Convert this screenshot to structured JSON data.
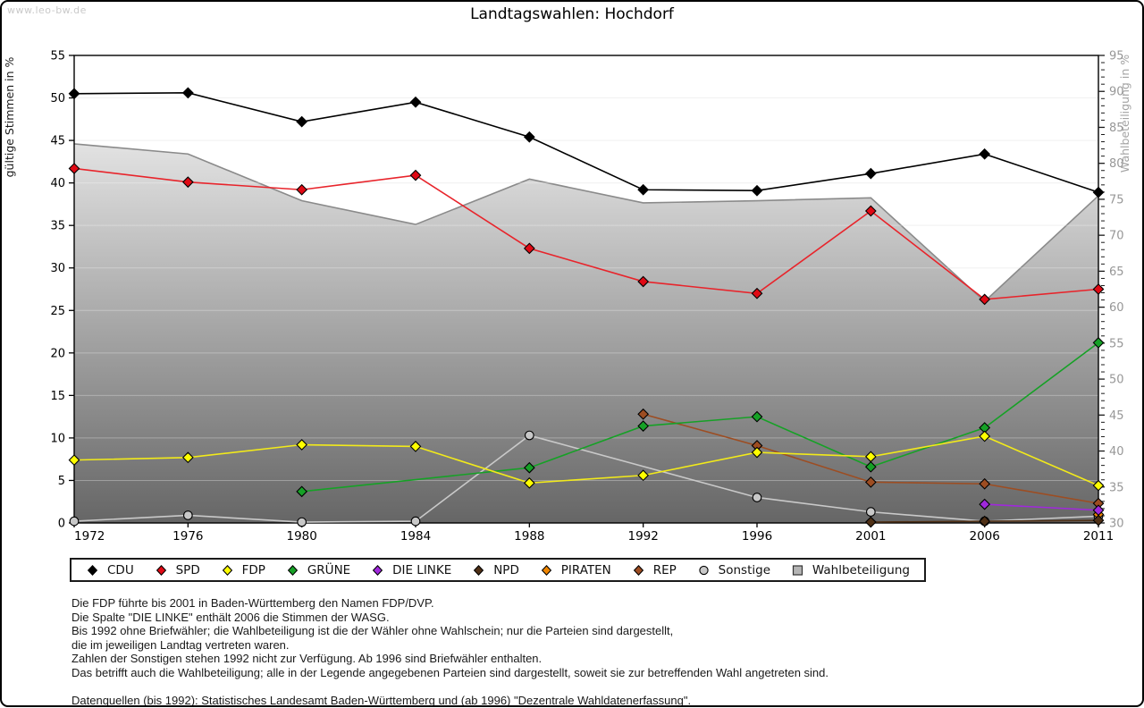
{
  "page": {
    "watermark": "www.leo-bw.de",
    "title": "Landtagswahlen: Hochdorf"
  },
  "chart_data": {
    "type": "line",
    "title": "Landtagswahlen: Hochdorf",
    "categories": [
      "1972",
      "1976",
      "1980",
      "1984",
      "1988",
      "1992",
      "1996",
      "2001",
      "2006",
      "2011"
    ],
    "left_axis": {
      "label": "gültige Stimmen in %",
      "min": 0,
      "max": 55,
      "step": 5
    },
    "right_axis": {
      "label": "Wahlbeteiligung in %",
      "min": 30,
      "max": 95,
      "step": 5,
      "minor_step": 1
    },
    "grid": true,
    "legend_position": "bottom",
    "area_gradient": {
      "top": "#ffffff",
      "bottom": "#666666"
    },
    "series": [
      {
        "name": "CDU",
        "color": "#000000",
        "line_color": "#000000",
        "marker": "diamond",
        "axis": "left",
        "values": [
          50.5,
          50.6,
          47.2,
          49.5,
          45.4,
          39.2,
          39.1,
          41.1,
          43.4,
          38.9
        ]
      },
      {
        "name": "SPD",
        "color": "#e00914",
        "line_color": "#e8242b",
        "marker": "diamond",
        "axis": "left",
        "values": [
          41.7,
          40.1,
          39.2,
          40.9,
          32.3,
          28.4,
          27.0,
          36.7,
          26.3,
          27.5
        ]
      },
      {
        "name": "FDP",
        "color": "#ffff00",
        "line_color": "#f2ea1a",
        "marker": "diamond",
        "axis": "left",
        "values": [
          7.4,
          7.7,
          9.2,
          9.0,
          4.7,
          5.6,
          8.3,
          7.8,
          10.2,
          4.4
        ]
      },
      {
        "name": "GRÜNE",
        "color": "#16a126",
        "line_color": "#16a126",
        "marker": "diamond",
        "axis": "left",
        "values": [
          null,
          null,
          3.7,
          null,
          6.5,
          11.4,
          12.5,
          6.6,
          11.2,
          21.2
        ]
      },
      {
        "name": "DIE LINKE",
        "color": "#a028dc",
        "line_color": "#a028dc",
        "marker": "diamond",
        "axis": "left",
        "values": [
          null,
          null,
          null,
          null,
          null,
          null,
          null,
          null,
          2.2,
          1.5
        ]
      },
      {
        "name": "NPD",
        "color": "#4f3016",
        "line_color": "#4f3016",
        "marker": "diamond",
        "axis": "left",
        "values": [
          null,
          null,
          null,
          null,
          null,
          null,
          null,
          0.1,
          0.2,
          0.3
        ]
      },
      {
        "name": "PIRATEN",
        "color": "#ef8500",
        "line_color": "#ef8500",
        "marker": "diamond",
        "axis": "left",
        "values": [
          null,
          null,
          null,
          null,
          null,
          null,
          null,
          null,
          null,
          1.0
        ]
      },
      {
        "name": "REP",
        "color": "#9d4d22",
        "line_color": "#9d4d22",
        "marker": "diamond",
        "axis": "left",
        "values": [
          null,
          null,
          null,
          null,
          null,
          12.8,
          9.1,
          4.8,
          4.6,
          2.3
        ]
      },
      {
        "name": "Sonstige",
        "color": "#c8c8c8",
        "line_color": "#c9c9c9",
        "marker": "circle",
        "axis": "left",
        "values": [
          0.2,
          0.9,
          0.1,
          0.2,
          10.3,
          null,
          3.0,
          1.3,
          0.2,
          0.8
        ]
      },
      {
        "name": "Wahlbeteiligung",
        "color": "#b4b4b4",
        "line_color": "#8a8a8a",
        "marker": "square",
        "axis": "right",
        "area": true,
        "values": [
          82.7,
          81.3,
          74.8,
          71.5,
          77.8,
          74.5,
          74.8,
          75.2,
          60.8,
          75.5
        ]
      }
    ]
  },
  "footnotes": {
    "lines": [
      "Die FDP führte bis 2001 in Baden-Württemberg den Namen FDP/DVP.",
      "Die Spalte \"DIE LINKE\" enthält 2006 die Stimmen der WASG.",
      "Bis 1992 ohne Briefwähler; die Wahlbeteiligung ist die der Wähler ohne Wahlschein; nur die Parteien sind dargestellt,",
      "die im jeweiligen Landtag vertreten waren.",
      "Zahlen der Sonstigen stehen 1992 nicht zur Verfügung. Ab 1996 sind Briefwähler enthalten.",
      "Das betrifft auch die Wahlbeteiligung; alle in der Legende angegebenen Parteien sind dargestellt, soweit sie zur betreffenden Wahl angetreten sind.",
      "",
      "Datenquellen (bis 1992): Statistisches Landesamt Baden-Württemberg und (ab 1996) \"Dezentrale Wahldatenerfassung\"."
    ]
  }
}
